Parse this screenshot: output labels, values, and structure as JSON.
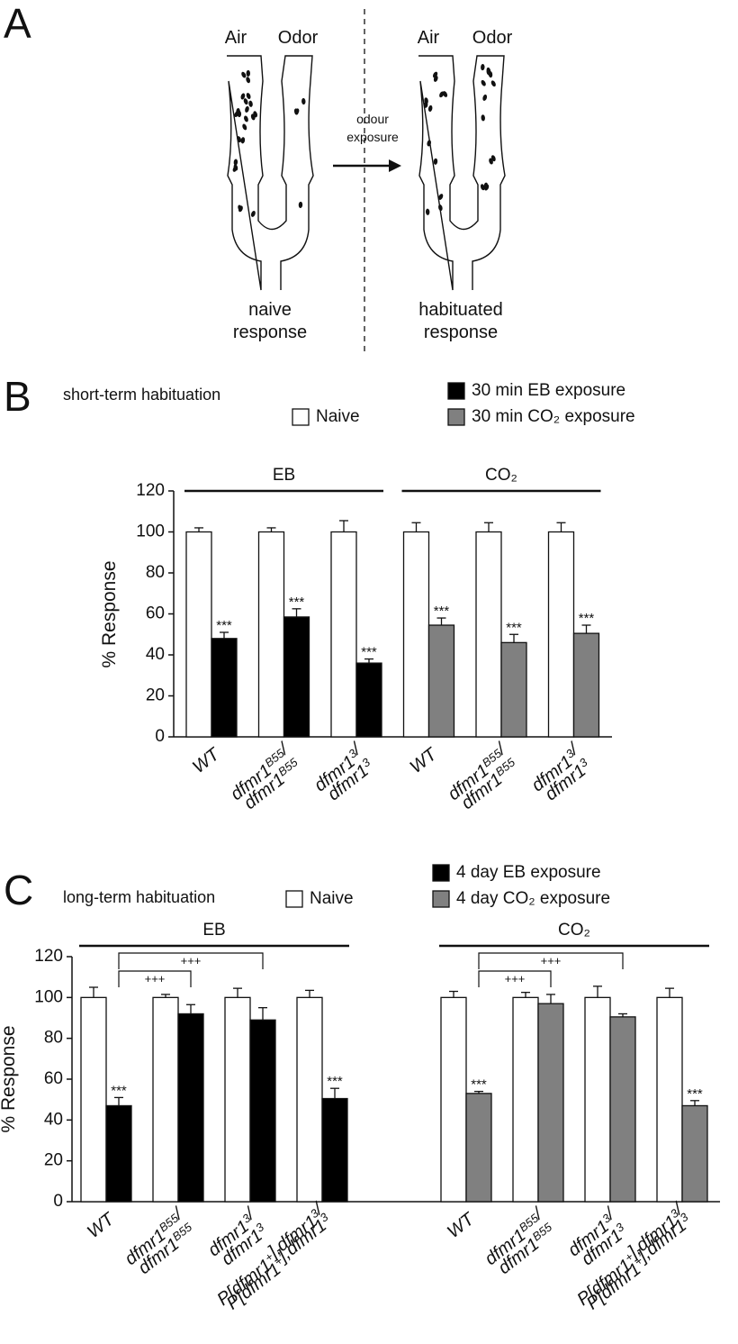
{
  "panel_a": {
    "label": "A",
    "arms": [
      "Air",
      "Odor"
    ],
    "arrow_label": [
      "odour",
      "exposure"
    ],
    "responses": [
      [
        "naive",
        "response"
      ],
      [
        "habituated",
        "response"
      ]
    ]
  },
  "chart_data": [
    {
      "type": "bar",
      "panel": "B",
      "title": "short-term habituation",
      "y_label": "% Response",
      "ylim": [
        0,
        120
      ],
      "yticks": [
        0,
        20,
        40,
        60,
        80,
        100,
        120
      ],
      "categories": [
        [
          [
            "WT"
          ]
        ],
        [
          [
            "dfmr1",
            {
              "sup": "B55"
            },
            "/"
          ],
          [
            "dfmr1",
            {
              "sup": "B55"
            }
          ]
        ],
        [
          [
            "dfmr1",
            {
              "sup": "3"
            },
            "/"
          ],
          [
            "dfmr1",
            {
              "sup": "3"
            }
          ]
        ],
        [
          [
            "WT"
          ]
        ],
        [
          [
            "dfmr1",
            {
              "sup": "B55"
            },
            "/"
          ],
          [
            "dfmr1",
            {
              "sup": "B55"
            }
          ]
        ],
        [
          [
            "dfmr1",
            {
              "sup": "3"
            },
            "/"
          ],
          [
            "dfmr1",
            {
              "sup": "3"
            }
          ]
        ]
      ],
      "series": [
        {
          "name": "Naive",
          "color": "#ffffff",
          "values": [
            100,
            100,
            100,
            100,
            100,
            100
          ],
          "errors": [
            2,
            2,
            5.5,
            4.5,
            4.5,
            4.5
          ]
        },
        {
          "name": "30 min EB exposure",
          "color": "#000000",
          "values": [
            48,
            58.5,
            36,
            null,
            null,
            null
          ],
          "errors": [
            3,
            4,
            2,
            null,
            null,
            null
          ],
          "significance": [
            "***",
            "***",
            "***",
            null,
            null,
            null
          ]
        },
        {
          "name": "30 min CO₂ exposure",
          "color": "#808080",
          "values": [
            null,
            null,
            null,
            54.5,
            46,
            50.5
          ],
          "errors": [
            null,
            null,
            null,
            3.5,
            4,
            4
          ],
          "significance": [
            null,
            null,
            null,
            "***",
            "***",
            "***"
          ]
        }
      ],
      "groups": [
        {
          "label": "EB",
          "categories": [
            0,
            2
          ]
        },
        {
          "label": "CO₂",
          "categories": [
            3,
            5
          ]
        }
      ]
    },
    {
      "type": "bar",
      "panel": "C",
      "title": "long-term habituation",
      "y_label": "% Response",
      "ylim": [
        0,
        120
      ],
      "yticks": [
        0,
        20,
        40,
        60,
        80,
        100,
        120
      ],
      "categories": [
        [
          [
            "WT"
          ]
        ],
        [
          [
            "dfmr1",
            {
              "sup": "B55"
            },
            "/"
          ],
          [
            "dfmr1",
            {
              "sup": "B55"
            }
          ]
        ],
        [
          [
            "dfmr1",
            {
              "sup": "3"
            },
            "/"
          ],
          [
            "dfmr1",
            {
              "sup": "3"
            }
          ]
        ],
        [
          [
            "P[dfmr1",
            {
              "sup": "+"
            },
            "],dfmr1",
            {
              "sup": "3"
            },
            "/"
          ],
          [
            "P[dfmr1",
            {
              "sup": "+"
            },
            "],dfmr1",
            {
              "sup": "3"
            }
          ]
        ],
        [
          [
            "WT"
          ]
        ],
        [
          [
            "dfmr1",
            {
              "sup": "B55"
            },
            "/"
          ],
          [
            "dfmr1",
            {
              "sup": "B55"
            }
          ]
        ],
        [
          [
            "dfmr1",
            {
              "sup": "3"
            },
            "/"
          ],
          [
            "dfmr1",
            {
              "sup": "3"
            }
          ]
        ],
        [
          [
            "P[dfmr1",
            {
              "sup": "+"
            },
            "],dfmr1",
            {
              "sup": "3"
            },
            "/"
          ],
          [
            "P[dfmr1",
            {
              "sup": "+"
            },
            "],dfmr1",
            {
              "sup": "3"
            }
          ]
        ]
      ],
      "series": [
        {
          "name": "Naive",
          "color": "#ffffff",
          "values": [
            100,
            100,
            100,
            100,
            100,
            100,
            100,
            100
          ],
          "errors": [
            5,
            1.5,
            4.5,
            3.5,
            3,
            2.5,
            5.5,
            4.5
          ]
        },
        {
          "name": "4 day EB exposure",
          "color": "#000000",
          "values": [
            47,
            92,
            89,
            50.5,
            null,
            null,
            null,
            null
          ],
          "errors": [
            4,
            4.5,
            6,
            5,
            null,
            null,
            null,
            null
          ],
          "significance": [
            "***",
            null,
            null,
            "***",
            null,
            null,
            null,
            null
          ]
        },
        {
          "name": "4 day CO₂ exposure",
          "color": "#808080",
          "values": [
            null,
            null,
            null,
            null,
            53,
            97,
            90.5,
            47
          ],
          "errors": [
            null,
            null,
            null,
            null,
            1,
            4.5,
            1.5,
            2.5
          ],
          "significance": [
            null,
            null,
            null,
            null,
            "***",
            null,
            null,
            "***"
          ]
        }
      ],
      "groups": [
        {
          "label": "EB",
          "categories": [
            0,
            3
          ]
        },
        {
          "label": "CO₂",
          "categories": [
            4,
            7
          ]
        }
      ],
      "brackets": [
        {
          "from": 0,
          "to": 1,
          "label": "+++"
        },
        {
          "from": 0,
          "to": 2,
          "label": "+++"
        },
        {
          "from": 4,
          "to": 5,
          "label": "+++"
        },
        {
          "from": 4,
          "to": 6,
          "label": "+++"
        }
      ]
    }
  ]
}
